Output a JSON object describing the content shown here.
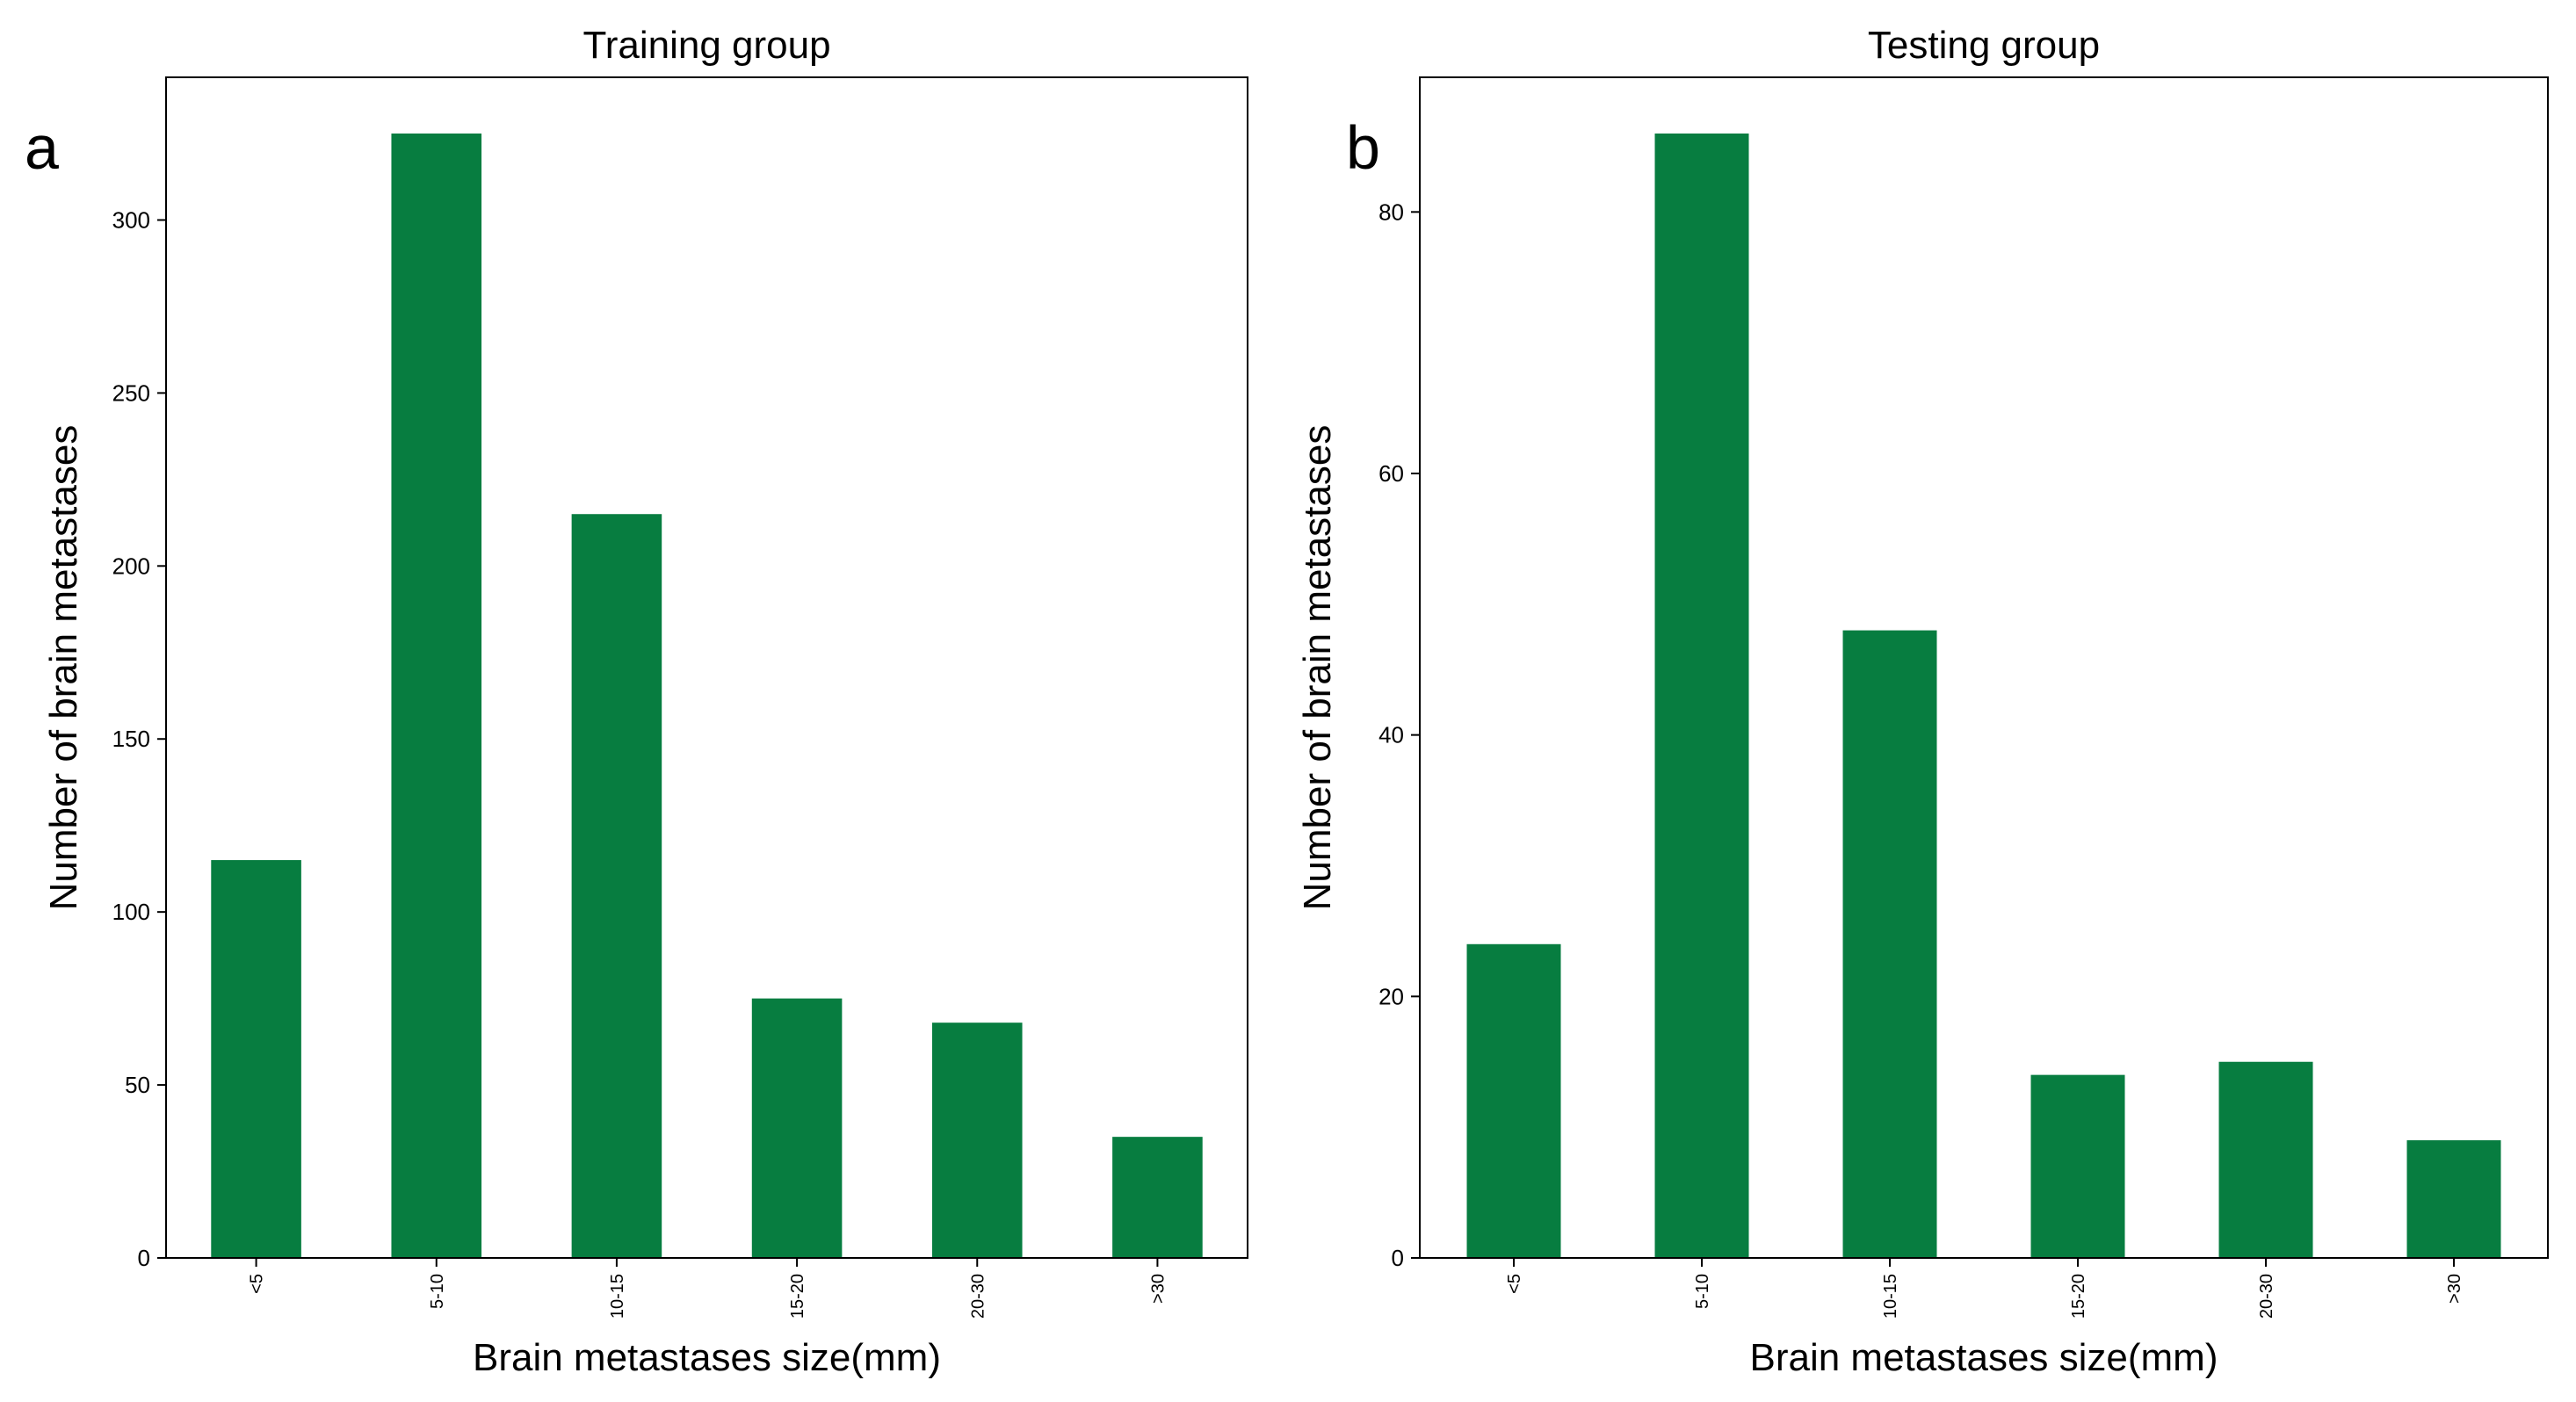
{
  "chart_data": [
    {
      "type": "bar",
      "panel_label": "a",
      "title": "Training group",
      "xlabel": "Brain metastases size(mm)",
      "ylabel": "Number of brain metastases",
      "categories": [
        "<5",
        "5-10",
        "10-15",
        "15-20",
        "20-30",
        ">30"
      ],
      "values": [
        115,
        325,
        215,
        75,
        68,
        35
      ],
      "ylim": [
        0,
        341.25
      ],
      "yticks": [
        0,
        50,
        100,
        150,
        200,
        250,
        300
      ],
      "ytick_labels": [
        "0",
        "50",
        "100",
        "150",
        "200",
        "250",
        "300"
      ],
      "bar_color": "#077d40",
      "grid": false,
      "legend": "none"
    },
    {
      "type": "bar",
      "panel_label": "b",
      "title": "Testing group",
      "xlabel": "Brain metastases size(mm)",
      "ylabel": "Number of brain metastases",
      "categories": [
        "<5",
        "5-10",
        "10-15",
        "15-20",
        "20-30",
        ">30"
      ],
      "values": [
        24,
        86,
        48,
        14,
        15,
        9
      ],
      "ylim": [
        0,
        90.3
      ],
      "yticks": [
        0,
        20,
        40,
        60,
        80
      ],
      "ytick_labels": [
        "0",
        "20",
        "40",
        "60",
        "80"
      ],
      "bar_color": "#077d40",
      "grid": false,
      "legend": "none"
    }
  ]
}
